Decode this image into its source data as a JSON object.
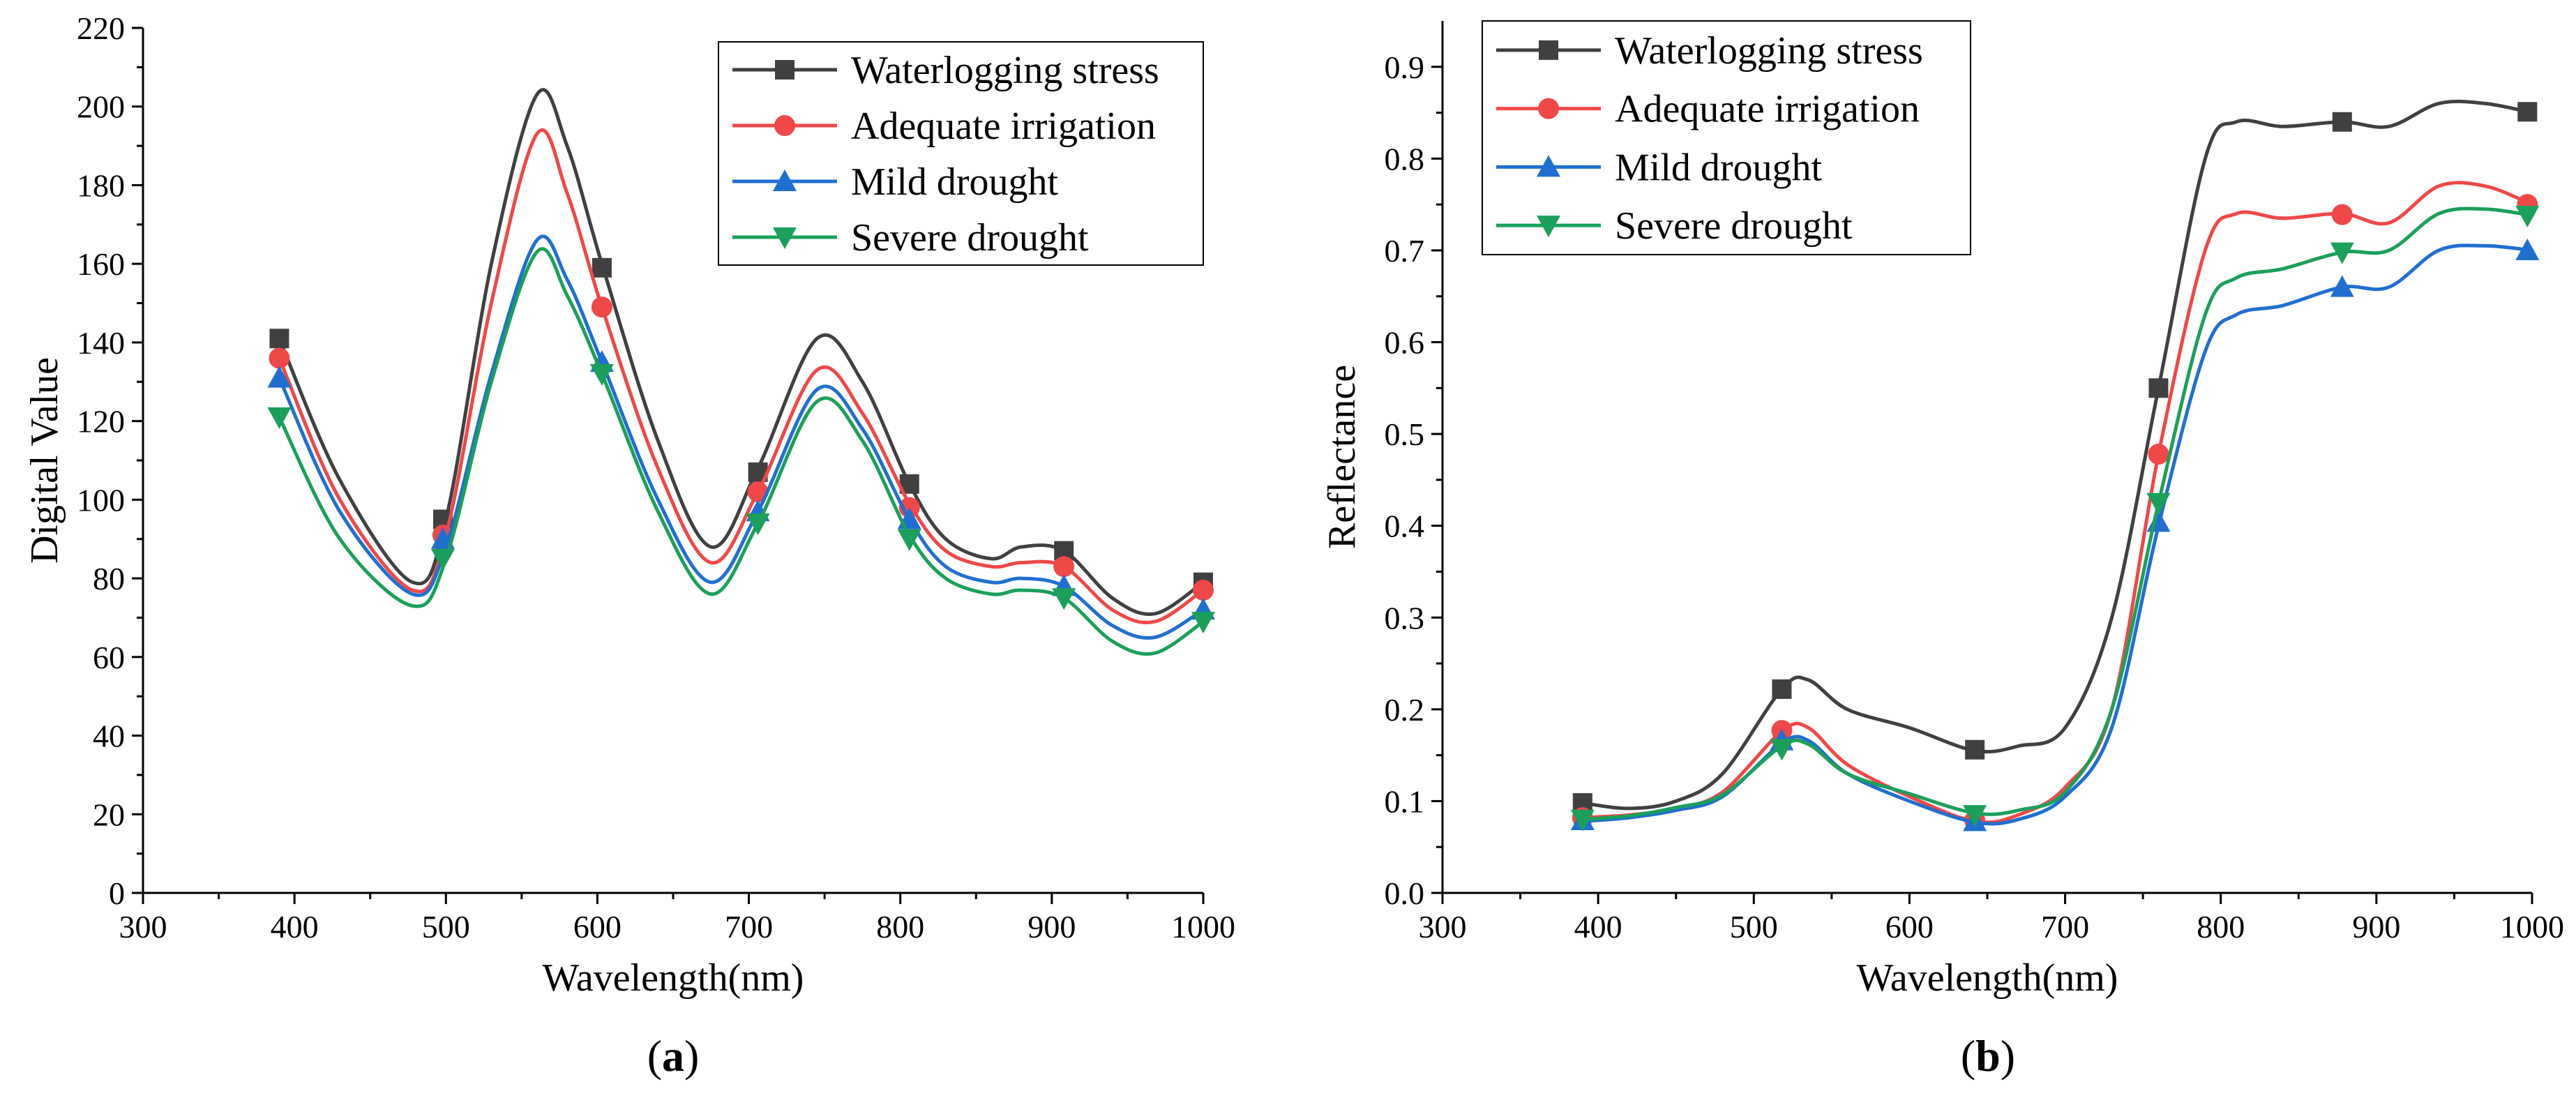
{
  "chart_data": [
    {
      "id": "a",
      "type": "line",
      "panel_label": "a",
      "panel_label_parts": [
        "(",
        "a",
        ")"
      ],
      "xlabel": "Wavelength(nm)",
      "ylabel": "Digital Value",
      "xlim": [
        300,
        1000
      ],
      "ylim": [
        0,
        220
      ],
      "xticks": [
        300,
        400,
        500,
        600,
        700,
        800,
        900,
        1000
      ],
      "yticks": [
        0,
        20,
        40,
        60,
        80,
        100,
        120,
        140,
        160,
        180,
        200,
        220
      ],
      "legend_position": "top-right",
      "series": [
        {
          "name": "Waterlogging stress",
          "color": "#404040",
          "marker": "square",
          "x": [
            390,
            430,
            478,
            500,
            530,
            560,
            580,
            603,
            640,
            675,
            706,
            745,
            775,
            806,
            830,
            860,
            880,
            908,
            940,
            968,
            1000
          ],
          "y": [
            141,
            105,
            79,
            95,
            160,
            203,
            190,
            160,
            115,
            88,
            108,
            141,
            130,
            104,
            90,
            85,
            88,
            87,
            75,
            71,
            79
          ],
          "markers_x": [
            390,
            498,
            603,
            706,
            806,
            908,
            1000
          ],
          "markers_y": [
            141,
            95,
            159,
            107,
            104,
            87,
            79
          ]
        },
        {
          "name": "Adequate irrigation",
          "color": "#f04747",
          "marker": "circle",
          "x": [
            390,
            430,
            478,
            500,
            530,
            560,
            580,
            603,
            640,
            675,
            706,
            745,
            775,
            806,
            830,
            860,
            880,
            908,
            940,
            968,
            1000
          ],
          "y": [
            136,
            100,
            77,
            91,
            150,
            193,
            178,
            149,
            108,
            84,
            102,
            133,
            122,
            99,
            87,
            83,
            84,
            83,
            72,
            69,
            77
          ],
          "markers_x": [
            390,
            498,
            603,
            706,
            806,
            908,
            1000
          ],
          "markers_y": [
            136,
            91,
            149,
            102,
            98,
            83,
            77
          ]
        },
        {
          "name": "Mild drought",
          "color": "#1f6fd1",
          "marker": "triangle-up",
          "x": [
            390,
            430,
            478,
            500,
            530,
            560,
            580,
            603,
            640,
            675,
            706,
            745,
            775,
            806,
            830,
            860,
            880,
            908,
            940,
            968,
            1000
          ],
          "y": [
            131,
            97,
            76,
            88,
            132,
            166,
            156,
            135,
            100,
            79,
            97,
            128,
            118,
            95,
            83,
            79,
            80,
            78,
            68,
            65,
            72
          ],
          "markers_x": [
            390,
            498,
            603,
            706,
            806,
            908,
            1000
          ],
          "markers_y": [
            131,
            90,
            135,
            97,
            95,
            78,
            72
          ]
        },
        {
          "name": "Severe drought",
          "color": "#1aa05a",
          "marker": "triangle-down",
          "x": [
            390,
            430,
            478,
            500,
            530,
            560,
            580,
            603,
            640,
            675,
            706,
            745,
            775,
            806,
            830,
            860,
            880,
            908,
            940,
            968,
            1000
          ],
          "y": [
            121,
            90,
            73,
            85,
            130,
            163,
            152,
            132,
            97,
            76,
            94,
            125,
            115,
            91,
            80,
            76,
            77,
            75,
            64,
            61,
            69
          ],
          "markers_x": [
            390,
            498,
            603,
            706,
            806,
            908,
            1000
          ],
          "markers_y": [
            121,
            85,
            132,
            94,
            90,
            75,
            69
          ]
        }
      ]
    },
    {
      "id": "b",
      "type": "line",
      "panel_label": "b",
      "panel_label_parts": [
        "(",
        "b",
        ")"
      ],
      "xlabel": "Wavelength(nm)",
      "ylabel": "Reflectance",
      "xlim": [
        300,
        1000
      ],
      "ylim": [
        0,
        0.95
      ],
      "xticks": [
        300,
        400,
        500,
        600,
        700,
        800,
        900,
        1000
      ],
      "yticks": [
        0.0,
        0.1,
        0.2,
        0.3,
        0.4,
        0.5,
        0.6,
        0.7,
        0.8,
        0.9
      ],
      "ytick_labels": [
        "0.0",
        "0.1",
        "0.2",
        "0.3",
        "0.4",
        "0.5",
        "0.6",
        "0.7",
        "0.8",
        "0.9"
      ],
      "legend_position": "top-left",
      "series": [
        {
          "name": "Waterlogging stress",
          "color": "#404040",
          "marker": "square",
          "x": [
            390,
            420,
            450,
            480,
            518,
            535,
            560,
            600,
            642,
            670,
            700,
            730,
            760,
            790,
            810,
            840,
            878,
            908,
            940,
            970,
            1000
          ],
          "y": [
            0.098,
            0.092,
            0.1,
            0.13,
            0.222,
            0.232,
            0.2,
            0.18,
            0.155,
            0.16,
            0.18,
            0.3,
            0.55,
            0.8,
            0.84,
            0.835,
            0.84,
            0.835,
            0.86,
            0.86,
            0.85
          ],
          "markers_x": [
            390,
            518,
            642,
            760,
            878,
            997
          ],
          "markers_y": [
            0.098,
            0.222,
            0.156,
            0.55,
            0.84,
            0.851
          ]
        },
        {
          "name": "Adequate irrigation",
          "color": "#f04747",
          "marker": "circle",
          "x": [
            390,
            420,
            450,
            480,
            518,
            535,
            560,
            600,
            642,
            670,
            700,
            730,
            760,
            790,
            810,
            840,
            878,
            908,
            940,
            970,
            1000
          ],
          "y": [
            0.082,
            0.085,
            0.092,
            0.11,
            0.176,
            0.18,
            0.14,
            0.105,
            0.078,
            0.085,
            0.115,
            0.2,
            0.478,
            0.7,
            0.74,
            0.735,
            0.74,
            0.73,
            0.77,
            0.77,
            0.75
          ],
          "markers_x": [
            390,
            518,
            642,
            760,
            878,
            997
          ],
          "markers_y": [
            0.082,
            0.177,
            0.079,
            0.478,
            0.739,
            0.75
          ]
        },
        {
          "name": "Mild drought",
          "color": "#1f6fd1",
          "marker": "triangle-up",
          "x": [
            390,
            420,
            450,
            480,
            518,
            535,
            560,
            600,
            642,
            670,
            700,
            730,
            760,
            790,
            810,
            840,
            878,
            908,
            940,
            970,
            1000
          ],
          "y": [
            0.078,
            0.082,
            0.09,
            0.105,
            0.163,
            0.166,
            0.13,
            0.1,
            0.077,
            0.08,
            0.105,
            0.18,
            0.4,
            0.59,
            0.63,
            0.64,
            0.66,
            0.66,
            0.7,
            0.705,
            0.7
          ],
          "markers_x": [
            390,
            518,
            642,
            760,
            878,
            997
          ],
          "markers_y": [
            0.079,
            0.166,
            0.078,
            0.404,
            0.66,
            0.7
          ]
        },
        {
          "name": "Severe drought",
          "color": "#1aa05a",
          "marker": "triangle-down",
          "x": [
            390,
            420,
            450,
            480,
            518,
            535,
            560,
            600,
            642,
            670,
            700,
            730,
            760,
            790,
            810,
            840,
            878,
            908,
            940,
            970,
            1000
          ],
          "y": [
            0.08,
            0.084,
            0.093,
            0.107,
            0.16,
            0.162,
            0.13,
            0.108,
            0.087,
            0.09,
            0.11,
            0.2,
            0.425,
            0.63,
            0.67,
            0.68,
            0.698,
            0.7,
            0.74,
            0.745,
            0.738
          ],
          "markers_x": [
            390,
            518,
            642,
            760,
            878,
            997
          ],
          "markers_y": [
            0.08,
            0.157,
            0.085,
            0.425,
            0.698,
            0.738
          ]
        }
      ]
    }
  ]
}
